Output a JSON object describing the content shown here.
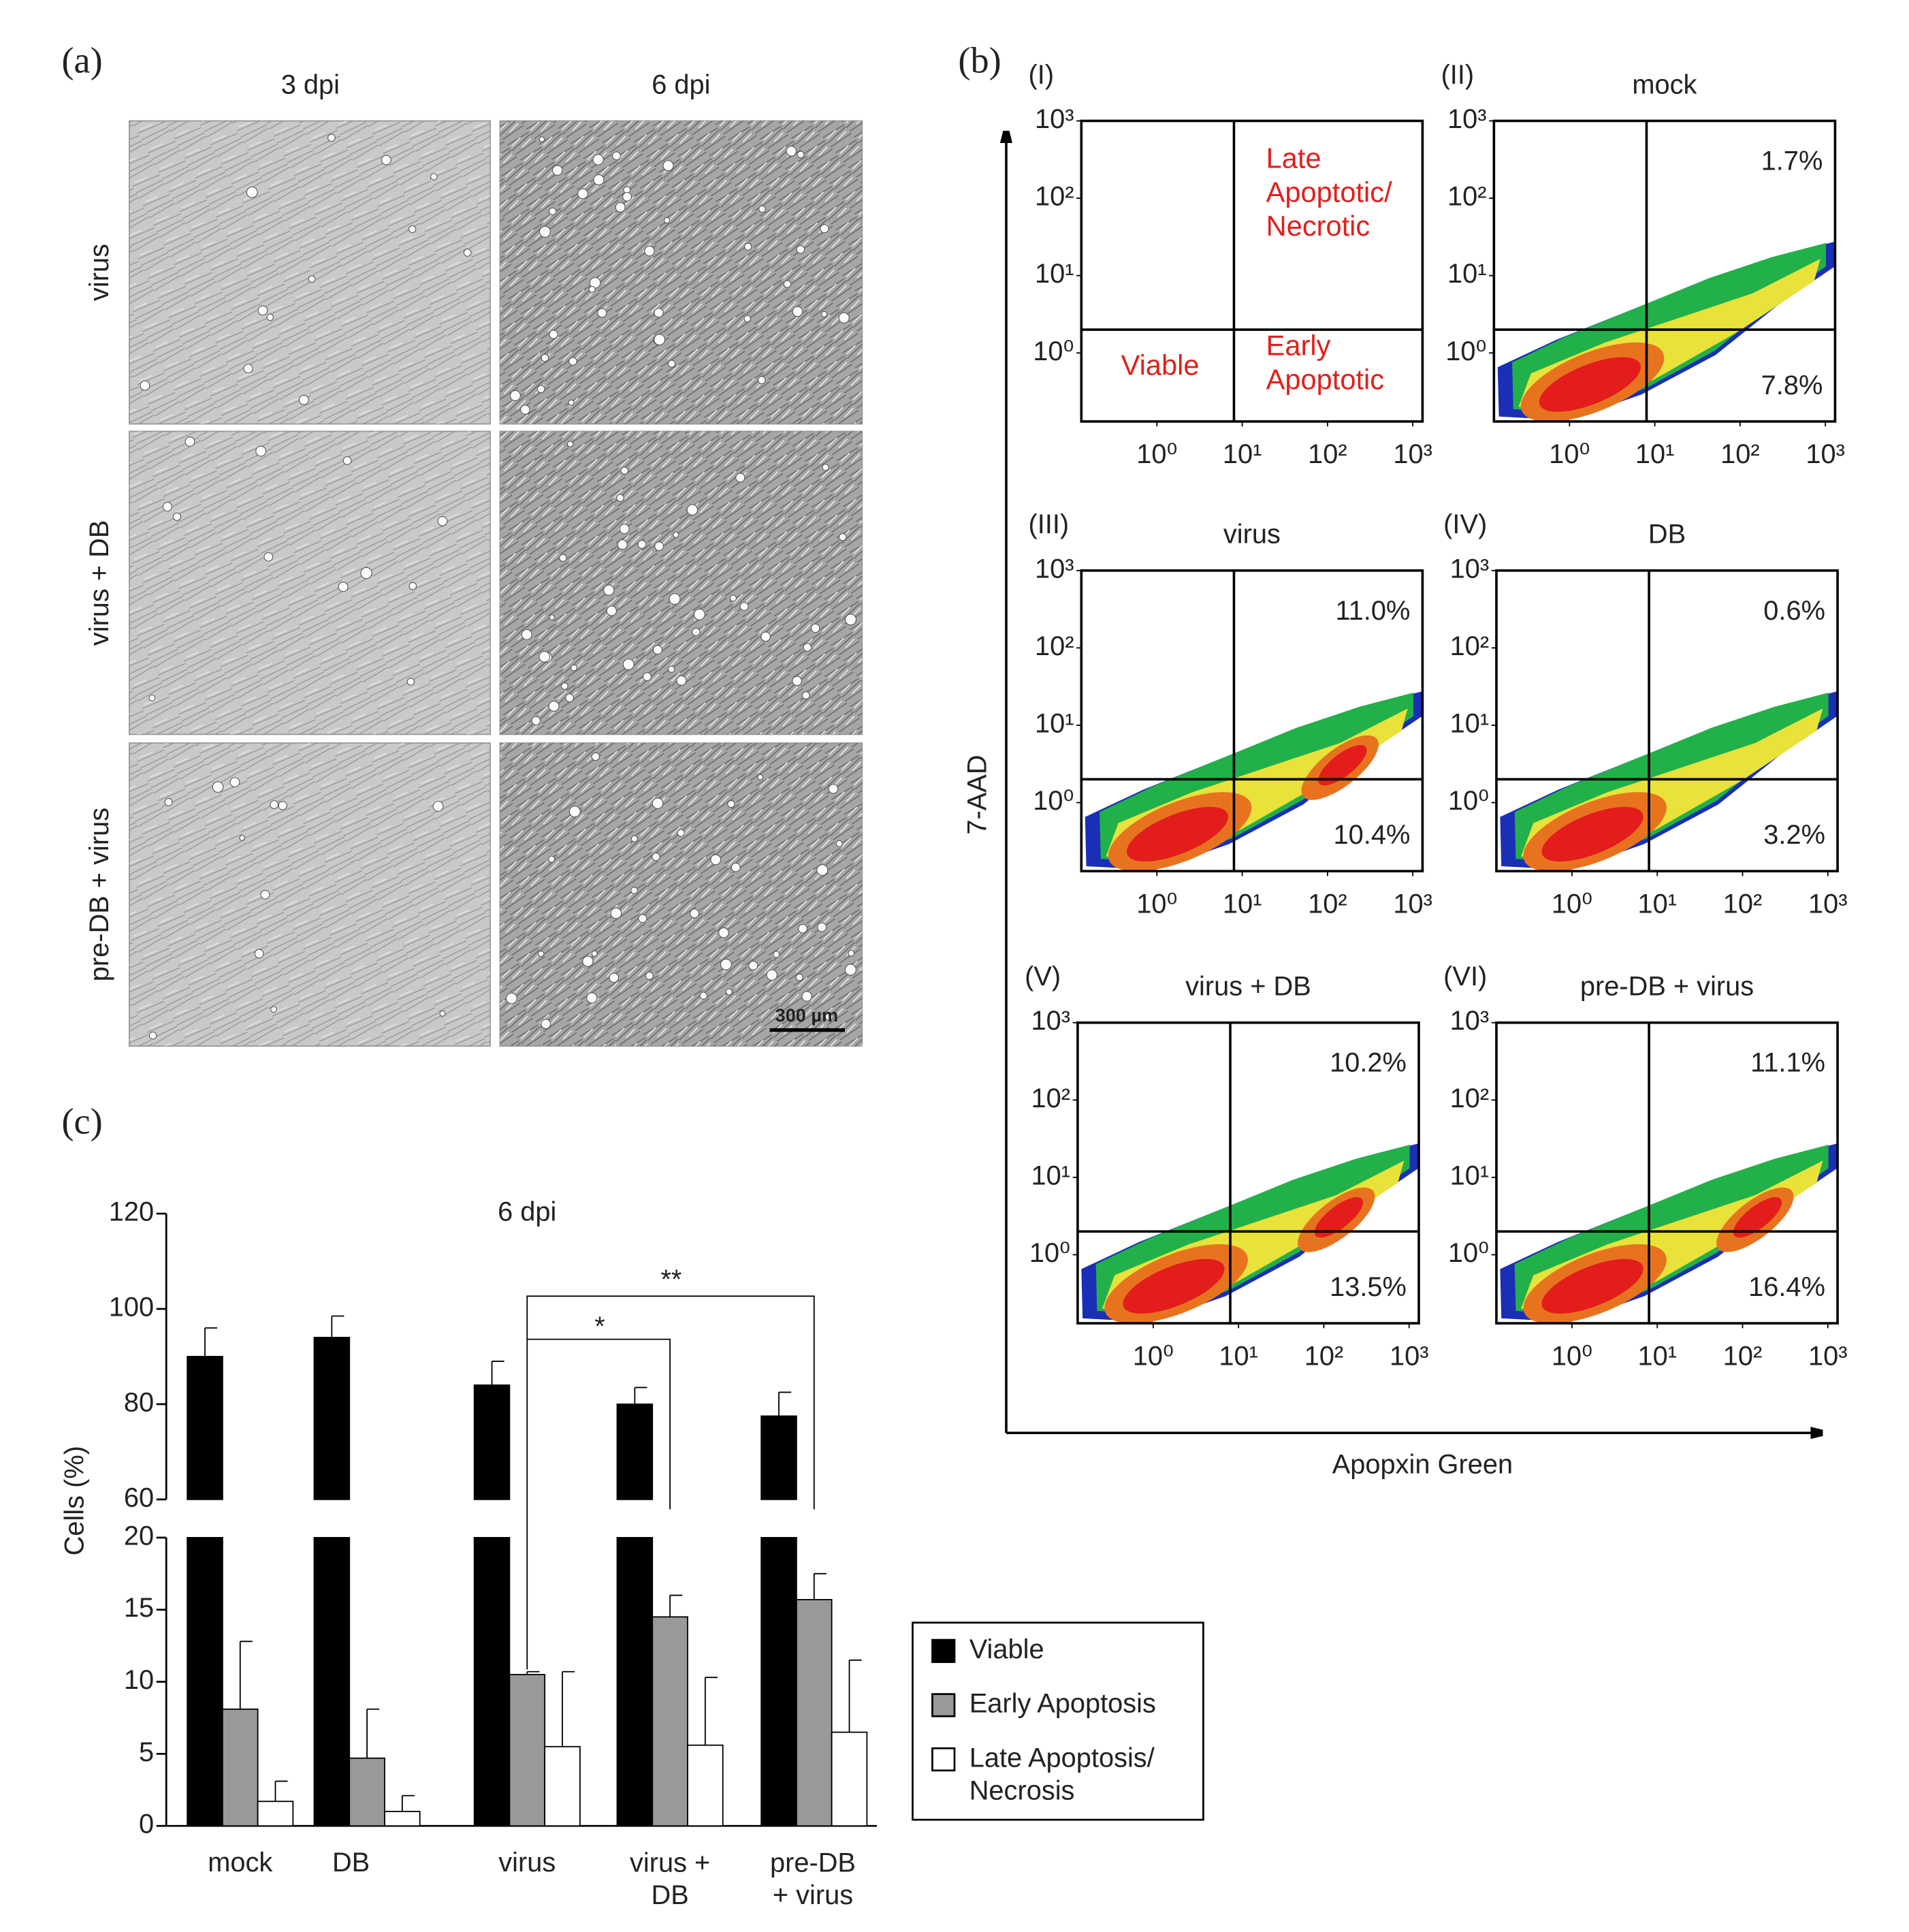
{
  "panel_labels": {
    "a": "(a)",
    "b": "(b)",
    "c": "(c)"
  },
  "panel_a": {
    "columns": [
      "3 dpi",
      "6 dpi"
    ],
    "rows": [
      "virus",
      "virus + DB",
      "pre-DB + virus"
    ],
    "scale_bar": "300 µm"
  },
  "panel_b": {
    "y_label": "7-AAD",
    "x_label": "Apopxin Green"
  },
  "chart_data": [
    {
      "type": "flow",
      "panel": "(I)",
      "log": true,
      "xlim": [
        0.13,
        1300
      ],
      "ylim": [
        0.13,
        1000
      ],
      "xticks": [
        {
          "value": 1,
          "label": "10⁰"
        },
        {
          "value": 10,
          "label": "10¹"
        },
        {
          "value": 100,
          "label": "10²"
        },
        {
          "value": 1000,
          "label": "10³"
        }
      ],
      "yticks": [
        {
          "value": 1,
          "label": "10⁰"
        },
        {
          "value": 10,
          "label": "10¹"
        },
        {
          "value": 100,
          "label": "10²"
        },
        {
          "value": 1000,
          "label": "10³"
        }
      ],
      "gate_x": 8,
      "gate_y": 2,
      "quadrant_labels": {
        "upper_right": "Late\nApoptotic/\nNecrotic",
        "lower_left": "Viable",
        "lower_right": "Early\nApoptotic"
      }
    },
    {
      "type": "flow",
      "panel": "(II)",
      "title": "mock",
      "log": true,
      "xlim": [
        0.13,
        1300
      ],
      "ylim": [
        0.13,
        1000
      ],
      "xticks": [
        {
          "value": 1,
          "label": "10⁰"
        },
        {
          "value": 10,
          "label": "10¹"
        },
        {
          "value": 100,
          "label": "10²"
        },
        {
          "value": 1000,
          "label": "10³"
        }
      ],
      "yticks": [
        {
          "value": 1,
          "label": "10⁰"
        },
        {
          "value": 10,
          "label": "10¹"
        },
        {
          "value": 100,
          "label": "10²"
        },
        {
          "value": 1000,
          "label": "10³"
        }
      ],
      "gate_x": 8,
      "gate_y": 2,
      "upper_right": "1.7%",
      "lower_right": "7.8%"
    },
    {
      "type": "flow",
      "panel": "(III)",
      "title": "virus",
      "log": true,
      "xlim": [
        0.13,
        1300
      ],
      "ylim": [
        0.13,
        1000
      ],
      "xticks": [
        {
          "value": 1,
          "label": "10⁰"
        },
        {
          "value": 10,
          "label": "10¹"
        },
        {
          "value": 100,
          "label": "10²"
        },
        {
          "value": 1000,
          "label": "10³"
        }
      ],
      "yticks": [
        {
          "value": 1,
          "label": "10⁰"
        },
        {
          "value": 10,
          "label": "10¹"
        },
        {
          "value": 100,
          "label": "10²"
        },
        {
          "value": 1000,
          "label": "10³"
        }
      ],
      "gate_x": 8,
      "gate_y": 2,
      "upper_right": "11.0%",
      "lower_right": "10.4%"
    },
    {
      "type": "flow",
      "panel": "(IV)",
      "title": "DB",
      "log": true,
      "xlim": [
        0.13,
        1300
      ],
      "ylim": [
        0.13,
        1000
      ],
      "xticks": [
        {
          "value": 1,
          "label": "10⁰"
        },
        {
          "value": 10,
          "label": "10¹"
        },
        {
          "value": 100,
          "label": "10²"
        },
        {
          "value": 1000,
          "label": "10³"
        }
      ],
      "yticks": [
        {
          "value": 1,
          "label": "10⁰"
        },
        {
          "value": 10,
          "label": "10¹"
        },
        {
          "value": 100,
          "label": "10²"
        },
        {
          "value": 1000,
          "label": "10³"
        }
      ],
      "gate_x": 8,
      "gate_y": 2,
      "upper_right": "0.6%",
      "lower_right": "3.2%"
    },
    {
      "type": "flow",
      "panel": "(V)",
      "title": "virus + DB",
      "log": true,
      "xlim": [
        0.13,
        1300
      ],
      "ylim": [
        0.13,
        1000
      ],
      "xticks": [
        {
          "value": 1,
          "label": "10⁰"
        },
        {
          "value": 10,
          "label": "10¹"
        },
        {
          "value": 100,
          "label": "10²"
        },
        {
          "value": 1000,
          "label": "10³"
        }
      ],
      "yticks": [
        {
          "value": 1,
          "label": "10⁰"
        },
        {
          "value": 10,
          "label": "10¹"
        },
        {
          "value": 100,
          "label": "10²"
        },
        {
          "value": 1000,
          "label": "10³"
        }
      ],
      "gate_x": 8,
      "gate_y": 2,
      "upper_right": "10.2%",
      "lower_right": "13.5%"
    },
    {
      "type": "flow",
      "panel": "(VI)",
      "title": "pre-DB + virus",
      "log": true,
      "xlim": [
        0.13,
        1300
      ],
      "ylim": [
        0.13,
        1000
      ],
      "xticks": [
        {
          "value": 1,
          "label": "10⁰"
        },
        {
          "value": 10,
          "label": "10¹"
        },
        {
          "value": 100,
          "label": "10²"
        },
        {
          "value": 1000,
          "label": "10³"
        }
      ],
      "yticks": [
        {
          "value": 1,
          "label": "10⁰"
        },
        {
          "value": 10,
          "label": "10¹"
        },
        {
          "value": 100,
          "label": "10²"
        },
        {
          "value": 1000,
          "label": "10³"
        }
      ],
      "gate_x": 8,
      "gate_y": 2,
      "upper_right": "11.1%",
      "lower_right": "16.4%"
    },
    {
      "type": "bar",
      "title": "6 dpi",
      "y_label": "Cells (%)",
      "categories": [
        "mock",
        "DB",
        "virus",
        "virus +\nDB",
        "pre-DB\n+ virus"
      ],
      "series": [
        {
          "name": "Viable",
          "color": "#000000",
          "values": [
            90,
            94,
            84,
            80,
            77.5
          ],
          "errors": [
            6,
            4.5,
            5,
            3.5,
            5
          ]
        },
        {
          "name": "Early Apoptosis",
          "color": "#999999",
          "values": [
            8.1,
            4.7,
            10.5,
            14.5,
            15.7
          ],
          "errors": [
            4.7,
            3.4,
            0.2,
            1.5,
            1.8
          ]
        },
        {
          "name": "Late Apoptosis/\nNecrosis",
          "color": "#ffffff",
          "values": [
            1.7,
            1.0,
            5.5,
            5.6,
            6.5
          ],
          "errors": [
            1.4,
            1.1,
            5.2,
            4.7,
            5.0
          ]
        }
      ],
      "ylim": [
        0,
        120
      ],
      "y_break": [
        20,
        60
      ],
      "yticks": [
        0,
        5,
        10,
        15,
        20,
        60,
        80,
        100,
        120
      ],
      "annotations": [
        "*",
        "**"
      ]
    }
  ]
}
